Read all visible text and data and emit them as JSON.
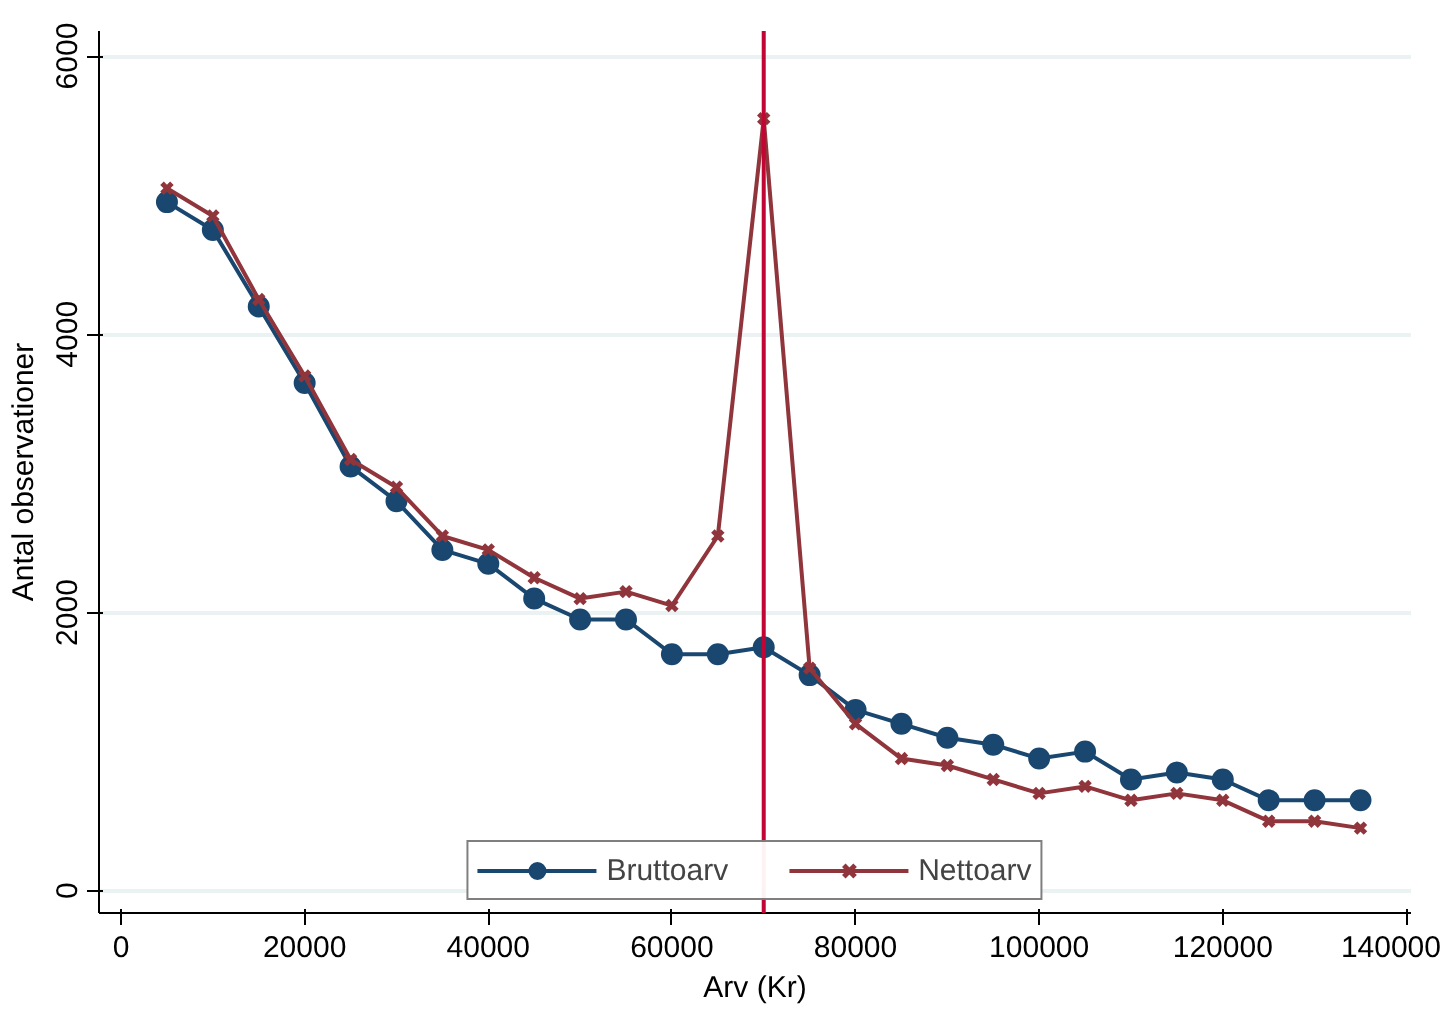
{
  "chart_data": {
    "type": "line",
    "xlabel": "Arv (Kr)",
    "ylabel": "Antal observationer",
    "x": [
      5000,
      10000,
      15000,
      20000,
      25000,
      30000,
      35000,
      40000,
      45000,
      50000,
      55000,
      60000,
      65000,
      70000,
      75000,
      80000,
      85000,
      90000,
      95000,
      100000,
      105000,
      110000,
      115000,
      120000,
      125000,
      130000,
      135000
    ],
    "series": [
      {
        "name": "Bruttoarv",
        "color": "#1a476f",
        "marker": "circle",
        "values": [
          4950,
          4750,
          4200,
          3650,
          3050,
          2800,
          2450,
          2350,
          2100,
          1950,
          1950,
          1700,
          1700,
          1750,
          1550,
          1300,
          1200,
          1100,
          1050,
          950,
          1000,
          800,
          850,
          800,
          650,
          650,
          650
        ]
      },
      {
        "name": "Nettoarv",
        "color": "#90353b",
        "marker": "cross",
        "values": [
          5050,
          4850,
          4250,
          3700,
          3100,
          2900,
          2550,
          2450,
          2250,
          2100,
          2150,
          2050,
          2550,
          5550,
          1600,
          1200,
          950,
          900,
          800,
          700,
          750,
          650,
          700,
          650,
          500,
          500,
          450
        ]
      }
    ],
    "xlim": [
      -2400,
      140500
    ],
    "ylim": [
      -160,
      6180
    ],
    "xticks": [
      0,
      20000,
      40000,
      60000,
      80000,
      100000,
      120000,
      140000
    ],
    "yticks": [
      0,
      2000,
      4000,
      6000
    ],
    "grid": "y",
    "legend": "bottom",
    "ref_lines": [
      {
        "axis": "x",
        "value": 70000,
        "color": "#c10534"
      }
    ]
  }
}
